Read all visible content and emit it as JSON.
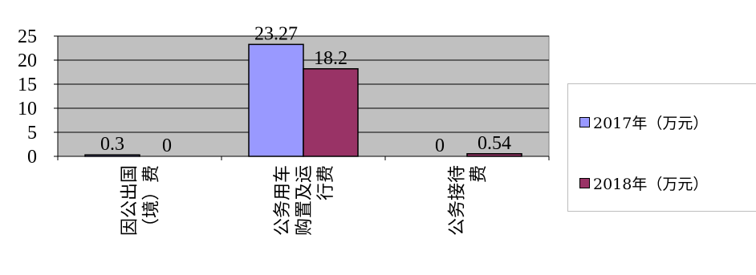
{
  "chart_data": {
    "type": "bar",
    "categories": [
      [
        "因公出国",
        "（境）费"
      ],
      [
        "公务用车",
        "购置及运",
        "行费"
      ],
      [
        "公务接待",
        "费"
      ]
    ],
    "series": [
      {
        "name": "2017年（万元）",
        "values": [
          0.3,
          23.27,
          0
        ],
        "labels": [
          "0.3",
          "23.27",
          "0"
        ],
        "color": "#9999ff"
      },
      {
        "name": "2018年（万元）",
        "values": [
          0,
          18.2,
          0.54
        ],
        "labels": [
          "0",
          "18.2",
          "0.54"
        ],
        "color": "#993366"
      }
    ],
    "yticks": [
      "0",
      "5",
      "10",
      "15",
      "20",
      "25"
    ],
    "ylim": [
      0,
      25
    ],
    "grid": true,
    "legend_position": "right",
    "plot_background": "#c0c0c0"
  }
}
